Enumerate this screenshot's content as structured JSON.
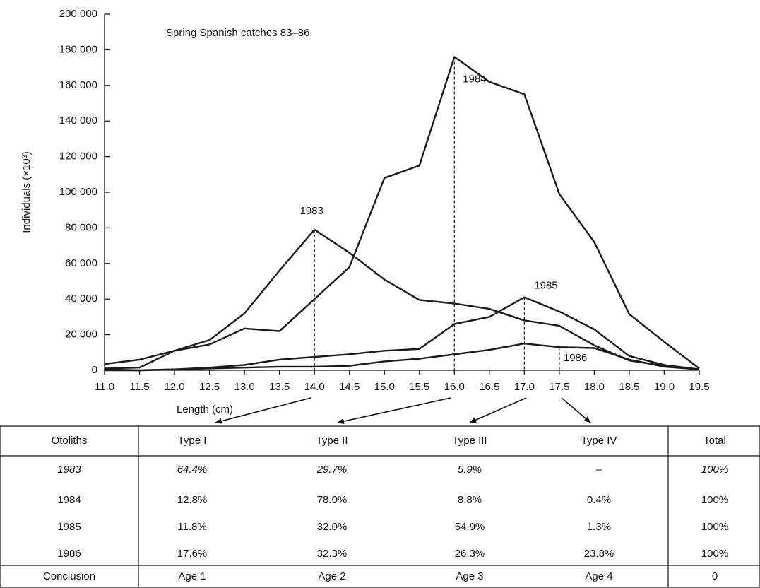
{
  "chart_data": {
    "type": "line",
    "title": "Spring Spanish catches 83–86",
    "x_label": "Length (cm)",
    "y_label": "Individuals (×10³)",
    "x": [
      11.0,
      11.5,
      12.0,
      12.5,
      13.0,
      13.5,
      14.0,
      14.5,
      15.0,
      15.5,
      16.0,
      16.5,
      17.0,
      17.5,
      18.0,
      18.5,
      19.0,
      19.5
    ],
    "series": [
      {
        "name": "1983",
        "color": "#1a1a1a",
        "values": [
          3500,
          6000,
          11000,
          17000,
          32000,
          56000,
          79000,
          66000,
          51000,
          39500,
          37500,
          34500,
          28000,
          25000,
          14000,
          5500,
          2500,
          500
        ]
      },
      {
        "name": "1984",
        "color": "#1a1a1a",
        "values": [
          1000,
          1500,
          11000,
          14500,
          23500,
          22000,
          40000,
          58000,
          108000,
          115000,
          176000,
          162000,
          155000,
          99000,
          72000,
          31500,
          16000,
          1000
        ]
      },
      {
        "name": "1985",
        "color": "#1a1a1a",
        "values": [
          500,
          0,
          500,
          1500,
          3000,
          6000,
          7500,
          9000,
          11000,
          12000,
          26000,
          30000,
          41000,
          33000,
          23000,
          8000,
          3000,
          500
        ]
      },
      {
        "name": "1986",
        "color": "#1a1a1a",
        "values": [
          0,
          0,
          500,
          1000,
          1500,
          2000,
          2000,
          2500,
          5000,
          6500,
          9000,
          11500,
          15000,
          13000,
          12500,
          6000,
          2000,
          500
        ]
      }
    ],
    "xlim": [
      11.0,
      19.5
    ],
    "xticks": [
      {
        "value": 11,
        "label": "11.0"
      },
      11.5,
      {
        "value": 12,
        "label": "12.0"
      },
      12.5,
      {
        "value": 13,
        "label": "13.0"
      },
      13.5,
      {
        "value": 14,
        "label": "14.0"
      },
      14.5,
      {
        "value": 15,
        "label": "15.0"
      },
      15.5,
      {
        "value": 16,
        "label": "16.0"
      },
      16.5,
      {
        "value": 17,
        "label": "17.0"
      },
      17.5,
      {
        "value": 18,
        "label": "18.0"
      },
      18.5,
      {
        "value": 19,
        "label": "19.0"
      },
      19.5
    ],
    "ylim": [
      0,
      200000
    ],
    "yticks": [
      0,
      {
        "value": 20000,
        "label": "20 000"
      },
      {
        "value": 40000,
        "label": "40 000"
      },
      {
        "value": 60000,
        "label": "60 000"
      },
      {
        "value": 80000,
        "label": "80 000"
      },
      {
        "value": 100000,
        "label": "100 000"
      },
      {
        "value": 120000,
        "label": "120 000"
      },
      {
        "value": 140000,
        "label": "140 000"
      },
      {
        "value": 160000,
        "label": "160 000"
      },
      {
        "value": 180000,
        "label": "180 000"
      },
      {
        "value": 200000,
        "label": "200 000"
      }
    ],
    "grid": false
  },
  "table": {
    "header": [
      "Otoliths",
      "Type I",
      "Type II",
      "Type III",
      "Type IV",
      "Total"
    ],
    "rows": [
      [
        "1983",
        "64.4%",
        "29.7%",
        "5.9%",
        "–",
        "100%"
      ],
      [
        "1984",
        "12.8%",
        "78.0%",
        "8.8%",
        "0.4%",
        "100%"
      ],
      [
        "1985",
        "11.8%",
        "32.0%",
        "54.9%",
        "1.3%",
        "100%"
      ],
      [
        "1986",
        "17.6%",
        "32.3%",
        "26.3%",
        "23.8%",
        "100%"
      ],
      [
        "Conclusion",
        "Age 1",
        "Age 2",
        "Age 3",
        "Age 4",
        "0"
      ]
    ]
  }
}
